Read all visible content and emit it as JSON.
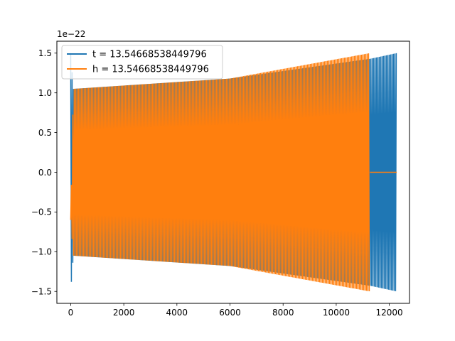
{
  "chart_data": {
    "type": "line",
    "title": "",
    "xlabel": "",
    "ylabel": "",
    "offset_label": "1e−22",
    "xlim": [
      -520,
      12760
    ],
    "ylim": [
      -1.65,
      1.65
    ],
    "x_ticks": [
      0,
      2000,
      4000,
      6000,
      8000,
      10000,
      12000
    ],
    "x_tick_labels": [
      "0",
      "2000",
      "4000",
      "6000",
      "8000",
      "10000",
      "12000"
    ],
    "y_ticks": [
      -1.5,
      -1.0,
      -0.5,
      0.0,
      0.5,
      1.0,
      1.5
    ],
    "y_tick_labels": [
      "−1.5",
      "−1.0",
      "−0.5",
      "0.0",
      "0.5",
      "1.0",
      "1.5"
    ],
    "grid": false,
    "legend_position": "top-left",
    "series": [
      {
        "name": "t = 13.54668538449796",
        "color": "#1f77b4",
        "description": "oscillating waveform, envelope grows from ~1.05 to ~1.5 (×1e-22), spans x 0 to ~12280",
        "envelope": {
          "x": [
            0,
            100,
            6000,
            11300,
            12280
          ],
          "upper": [
            1.5,
            1.05,
            1.18,
            1.43,
            1.5
          ],
          "lower": [
            -1.5,
            -1.05,
            -1.18,
            -1.43,
            -1.5
          ]
        },
        "x_range": [
          0,
          12280
        ]
      },
      {
        "name": "h = 13.54668538449796",
        "color": "#ff7f0e",
        "description": "oscillating waveform, envelope grows from ~1.05 to ~1.5 (×1e-22), ends at ~11270 then flat zero to ~12280",
        "envelope": {
          "x": [
            0,
            100,
            6000,
            11270
          ],
          "upper": [
            -0.6,
            1.05,
            1.18,
            1.5
          ],
          "lower": [
            -0.6,
            -1.05,
            -1.18,
            -1.5
          ]
        },
        "flat_tail": {
          "x": [
            11270,
            12280
          ],
          "y": 0.0
        },
        "x_range": [
          0,
          11270
        ]
      }
    ]
  }
}
